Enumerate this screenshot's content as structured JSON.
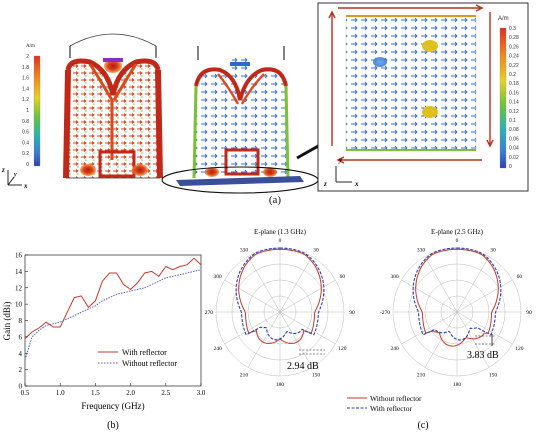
{
  "panel_a": {
    "caption": "(a)",
    "colorbar_left": {
      "unit": "A/m",
      "ticks": [
        "2",
        "1.8",
        "1.6",
        "1.4",
        "1.2",
        "1",
        "0.8",
        "0.6",
        "0.4",
        "0.2",
        "0"
      ]
    },
    "colorbar_inset": {
      "unit": "A/m",
      "ticks": [
        "0.3",
        "0.28",
        "0.26",
        "0.24",
        "0.22",
        "0.2",
        "0.18",
        "0.16",
        "0.14",
        "0.12",
        "0.1",
        "0.08",
        "0.06",
        "0.04",
        "0.02",
        "0"
      ]
    },
    "axes_left": {
      "z": "z",
      "y": "y",
      "x": "x"
    },
    "axes_inset": {
      "y": "y",
      "z": "z",
      "x": "x"
    }
  },
  "panel_b": {
    "caption": "(b)",
    "chart_data": {
      "type": "line",
      "xlabel": "Frequency (GHz)",
      "ylabel": "Gain (dBi)",
      "xlim": [
        0.5,
        3.0
      ],
      "ylim": [
        0,
        16
      ],
      "xticks": [
        "0.5",
        "1.0",
        "1.5",
        "2.0",
        "2.5",
        "3.0"
      ],
      "yticks": [
        "0",
        "2",
        "4",
        "6",
        "8",
        "10",
        "12",
        "14",
        "16"
      ],
      "legend_position": "bottom-right",
      "series": [
        {
          "name": "With reflector",
          "color": "#c0392b",
          "style": "solid",
          "x": [
            0.5,
            0.6,
            0.7,
            0.8,
            0.9,
            1.0,
            1.1,
            1.2,
            1.3,
            1.4,
            1.5,
            1.6,
            1.7,
            1.8,
            1.9,
            2.0,
            2.1,
            2.2,
            2.3,
            2.4,
            2.5,
            2.6,
            2.7,
            2.8,
            2.9,
            3.0
          ],
          "y": [
            5.8,
            6.6,
            7.1,
            7.8,
            7.2,
            7.2,
            9.0,
            10.8,
            11.0,
            9.6,
            10.4,
            12.8,
            13.8,
            13.8,
            12.4,
            11.8,
            12.6,
            13.8,
            14.0,
            13.4,
            14.6,
            14.2,
            14.6,
            14.8,
            15.6,
            14.8
          ]
        },
        {
          "name": "Without reflector",
          "color": "#4a5fc1",
          "style": "dotted",
          "x": [
            0.5,
            0.6,
            0.7,
            0.8,
            0.9,
            1.0,
            1.1,
            1.2,
            1.3,
            1.4,
            1.5,
            1.6,
            1.7,
            1.8,
            1.9,
            2.0,
            2.1,
            2.2,
            2.3,
            2.4,
            2.5,
            2.6,
            2.7,
            2.8,
            2.9,
            3.0
          ],
          "y": [
            3.2,
            6.0,
            6.8,
            7.4,
            7.6,
            7.8,
            8.2,
            8.6,
            9.0,
            9.4,
            9.8,
            10.4,
            10.8,
            11.2,
            11.4,
            11.6,
            11.8,
            12.0,
            12.4,
            12.8,
            13.2,
            13.4,
            13.6,
            13.8,
            14.0,
            14.2
          ]
        }
      ]
    }
  },
  "panel_c": {
    "caption": "(c)",
    "polar_plots": [
      {
        "title": "E-plane (1.3 GHz)",
        "annotation": "2.94 dB",
        "angle_labels": [
          "0",
          "30",
          "60",
          "90",
          "120",
          "150",
          "180",
          "210",
          "240",
          "-270",
          "300",
          "330"
        ]
      },
      {
        "title": "E-plane (2.5 GHz)",
        "annotation": "3.83 dB",
        "angle_labels": [
          "0",
          "30",
          "60",
          "90",
          "120",
          "150",
          "180",
          "210",
          "240",
          "-270",
          "300",
          "330"
        ]
      }
    ],
    "legend": [
      {
        "label": "Without reflector",
        "color": "#c0392b",
        "style": "solid"
      },
      {
        "label": "With reflector",
        "color": "#2a3db0",
        "style": "dashed"
      }
    ]
  }
}
